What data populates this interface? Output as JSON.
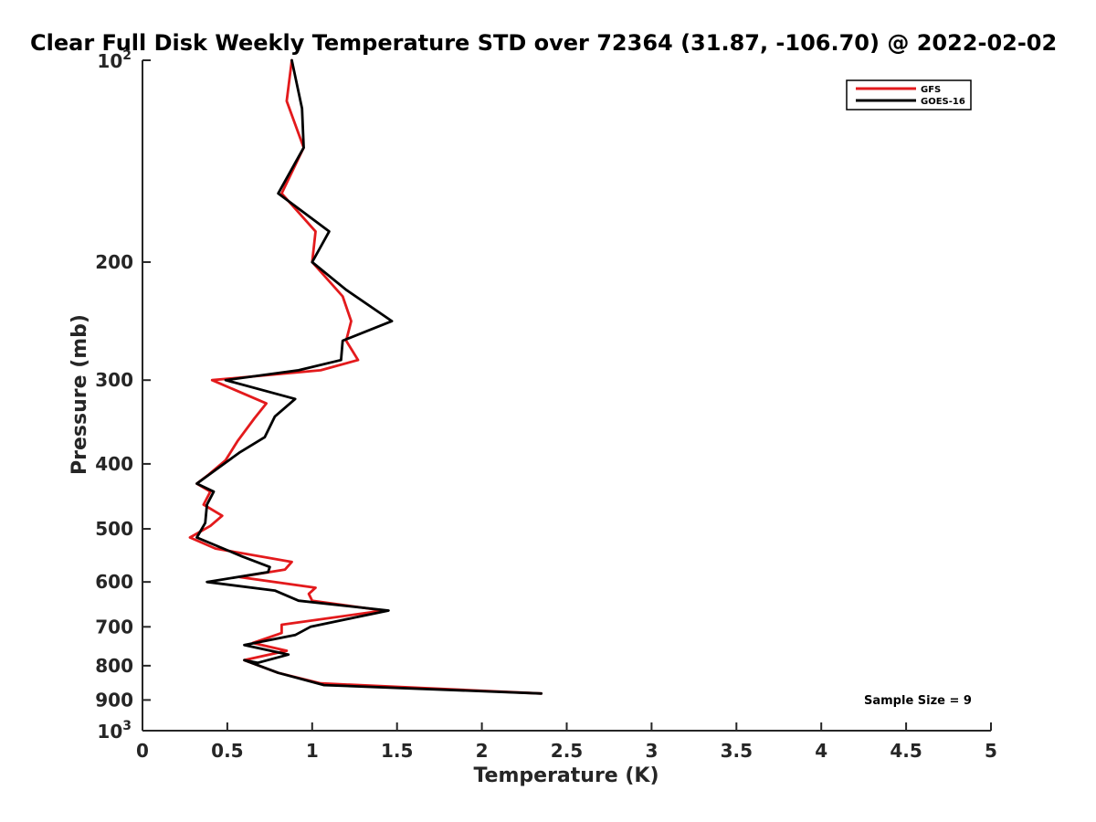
{
  "chart_data": {
    "type": "line",
    "title": "Clear Full Disk Weekly Temperature STD over 72364 (31.87, -106.70) @ 2022-02-02",
    "xlabel": "Temperature (K)",
    "ylabel": "Pressure (mb)",
    "xlim": [
      0,
      5
    ],
    "ylim": [
      100,
      1000
    ],
    "y_scale": "log",
    "y_reversed": true,
    "grid": false,
    "legend_position": "top-right",
    "x_ticks": [
      "0",
      "0.5",
      "1",
      "1.5",
      "2",
      "2.5",
      "3",
      "3.5",
      "4",
      "4.5",
      "5"
    ],
    "y_ticks": [
      {
        "value": 100,
        "base": "10",
        "exp": "2"
      },
      {
        "value": 200,
        "label": "200"
      },
      {
        "value": 300,
        "label": "300"
      },
      {
        "value": 400,
        "label": "400"
      },
      {
        "value": 500,
        "label": "500"
      },
      {
        "value": 600,
        "label": "600"
      },
      {
        "value": 700,
        "label": "700"
      },
      {
        "value": 800,
        "label": "800"
      },
      {
        "value": 900,
        "label": "900"
      },
      {
        "value": 1000,
        "base": "10",
        "exp": "3"
      }
    ],
    "annotation": "Sample Size = 9",
    "series": [
      {
        "name": "GFS",
        "color": "#e31a1c",
        "points": [
          [
            0.88,
            100
          ],
          [
            0.85,
            115
          ],
          [
            0.95,
            135
          ],
          [
            0.82,
            158
          ],
          [
            1.02,
            180
          ],
          [
            1.0,
            200
          ],
          [
            1.18,
            225
          ],
          [
            1.23,
            245
          ],
          [
            1.2,
            262
          ],
          [
            1.27,
            280
          ],
          [
            1.05,
            290
          ],
          [
            0.41,
            300
          ],
          [
            0.73,
            325
          ],
          [
            0.66,
            342
          ],
          [
            0.56,
            370
          ],
          [
            0.49,
            395
          ],
          [
            0.39,
            415
          ],
          [
            0.32,
            428
          ],
          [
            0.4,
            440
          ],
          [
            0.36,
            460
          ],
          [
            0.47,
            478
          ],
          [
            0.4,
            495
          ],
          [
            0.28,
            515
          ],
          [
            0.43,
            535
          ],
          [
            0.88,
            560
          ],
          [
            0.84,
            575
          ],
          [
            0.57,
            590
          ],
          [
            1.02,
            612
          ],
          [
            0.98,
            625
          ],
          [
            1.0,
            640
          ],
          [
            1.42,
            662
          ],
          [
            0.82,
            695
          ],
          [
            0.82,
            715
          ],
          [
            0.65,
            740
          ],
          [
            0.85,
            760
          ],
          [
            0.6,
            785
          ],
          [
            0.8,
            820
          ],
          [
            1.05,
            850
          ],
          [
            2.35,
            880
          ]
        ]
      },
      {
        "name": "GOES-16",
        "color": "#000000",
        "points": [
          [
            0.88,
            100
          ],
          [
            0.94,
            118
          ],
          [
            0.95,
            135
          ],
          [
            0.8,
            158
          ],
          [
            1.1,
            180
          ],
          [
            1.0,
            200
          ],
          [
            1.2,
            220
          ],
          [
            1.47,
            245
          ],
          [
            1.18,
            262
          ],
          [
            1.17,
            280
          ],
          [
            0.92,
            290
          ],
          [
            0.49,
            300
          ],
          [
            0.9,
            320
          ],
          [
            0.78,
            340
          ],
          [
            0.72,
            365
          ],
          [
            0.57,
            385
          ],
          [
            0.32,
            428
          ],
          [
            0.42,
            440
          ],
          [
            0.38,
            460
          ],
          [
            0.37,
            490
          ],
          [
            0.32,
            515
          ],
          [
            0.59,
            550
          ],
          [
            0.75,
            570
          ],
          [
            0.74,
            580
          ],
          [
            0.38,
            600
          ],
          [
            0.78,
            618
          ],
          [
            0.92,
            640
          ],
          [
            1.45,
            662
          ],
          [
            1.25,
            678
          ],
          [
            0.99,
            700
          ],
          [
            0.9,
            720
          ],
          [
            0.6,
            745
          ],
          [
            0.86,
            770
          ],
          [
            0.68,
            792
          ],
          [
            0.6,
            785
          ],
          [
            0.8,
            820
          ],
          [
            1.07,
            855
          ],
          [
            2.35,
            880
          ]
        ]
      }
    ]
  }
}
